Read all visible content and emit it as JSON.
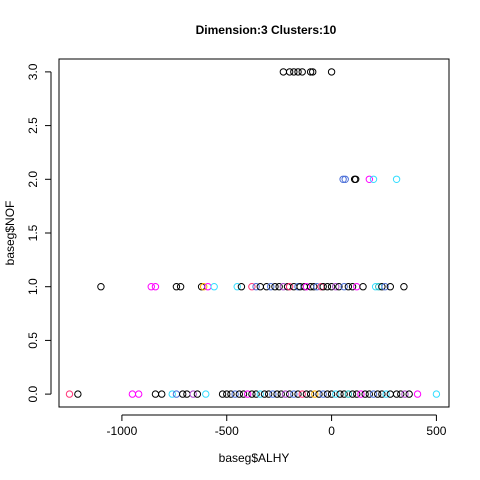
{
  "chart_data": {
    "type": "scatter",
    "title": "Dimension:3 Clusters:10",
    "xlabel": "baseg$ALHY",
    "ylabel": "baseg$NOF",
    "xlim": [
      -1300,
      560
    ],
    "ylim": [
      -0.12,
      3.12
    ],
    "xticks": [
      -1000,
      -500,
      0,
      500
    ],
    "xtick_labels": [
      "-1000",
      "-500",
      "0",
      "500"
    ],
    "yticks": [
      0.0,
      0.5,
      1.0,
      1.5,
      2.0,
      2.5,
      3.0
    ],
    "ytick_labels": [
      "0.0",
      "0.5",
      "1.0",
      "1.5",
      "2.0",
      "2.5",
      "3.0"
    ],
    "grid": false,
    "legend": "none",
    "marker": "open-circle",
    "colors": {
      "black": "#000000",
      "magenta": "#ff00ff",
      "cyan": "#33ddff",
      "blue": "#4b6fd8",
      "orange": "#ffb000",
      "pink": "#ff3377",
      "purple": "#aa44cc",
      "teal": "#22bbbb"
    },
    "points": [
      {
        "x": -230,
        "y": 3,
        "c": "black"
      },
      {
        "x": -200,
        "y": 3,
        "c": "black"
      },
      {
        "x": -180,
        "y": 3,
        "c": "black"
      },
      {
        "x": -160,
        "y": 3,
        "c": "black"
      },
      {
        "x": -140,
        "y": 3,
        "c": "black"
      },
      {
        "x": -100,
        "y": 3,
        "c": "black"
      },
      {
        "x": -90,
        "y": 3,
        "c": "black"
      },
      {
        "x": 0,
        "y": 3,
        "c": "black"
      },
      {
        "x": 55,
        "y": 2,
        "c": "blue"
      },
      {
        "x": 65,
        "y": 2,
        "c": "blue"
      },
      {
        "x": 110,
        "y": 2,
        "c": "black"
      },
      {
        "x": 115,
        "y": 2,
        "c": "black"
      },
      {
        "x": 180,
        "y": 2,
        "c": "magenta"
      },
      {
        "x": 200,
        "y": 2,
        "c": "cyan"
      },
      {
        "x": 310,
        "y": 2,
        "c": "cyan"
      },
      {
        "x": -1100,
        "y": 1,
        "c": "black"
      },
      {
        "x": -860,
        "y": 1,
        "c": "magenta"
      },
      {
        "x": -840,
        "y": 1,
        "c": "magenta"
      },
      {
        "x": -740,
        "y": 1,
        "c": "black"
      },
      {
        "x": -720,
        "y": 1,
        "c": "black"
      },
      {
        "x": -620,
        "y": 1,
        "c": "black"
      },
      {
        "x": -610,
        "y": 1,
        "c": "orange"
      },
      {
        "x": -590,
        "y": 1,
        "c": "magenta"
      },
      {
        "x": -560,
        "y": 1,
        "c": "cyan"
      },
      {
        "x": -450,
        "y": 1,
        "c": "cyan"
      },
      {
        "x": -430,
        "y": 1,
        "c": "black"
      },
      {
        "x": -380,
        "y": 1,
        "c": "pink"
      },
      {
        "x": -360,
        "y": 1,
        "c": "blue"
      },
      {
        "x": -340,
        "y": 1,
        "c": "black"
      },
      {
        "x": -310,
        "y": 1,
        "c": "black"
      },
      {
        "x": -290,
        "y": 1,
        "c": "blue"
      },
      {
        "x": -270,
        "y": 1,
        "c": "black"
      },
      {
        "x": -250,
        "y": 1,
        "c": "black"
      },
      {
        "x": -230,
        "y": 1,
        "c": "purple"
      },
      {
        "x": -210,
        "y": 1,
        "c": "black"
      },
      {
        "x": -200,
        "y": 1,
        "c": "pink"
      },
      {
        "x": -180,
        "y": 1,
        "c": "black"
      },
      {
        "x": -160,
        "y": 1,
        "c": "blue"
      },
      {
        "x": -150,
        "y": 1,
        "c": "black"
      },
      {
        "x": -130,
        "y": 1,
        "c": "black"
      },
      {
        "x": -120,
        "y": 1,
        "c": "magenta"
      },
      {
        "x": -100,
        "y": 1,
        "c": "black"
      },
      {
        "x": -85,
        "y": 1,
        "c": "black"
      },
      {
        "x": -70,
        "y": 1,
        "c": "blue"
      },
      {
        "x": -50,
        "y": 1,
        "c": "pink"
      },
      {
        "x": -40,
        "y": 1,
        "c": "black"
      },
      {
        "x": -20,
        "y": 1,
        "c": "black"
      },
      {
        "x": 0,
        "y": 1,
        "c": "black"
      },
      {
        "x": 20,
        "y": 1,
        "c": "purple"
      },
      {
        "x": 35,
        "y": 1,
        "c": "black"
      },
      {
        "x": 60,
        "y": 1,
        "c": "blue"
      },
      {
        "x": 80,
        "y": 1,
        "c": "black"
      },
      {
        "x": 100,
        "y": 1,
        "c": "black"
      },
      {
        "x": 120,
        "y": 1,
        "c": "magenta"
      },
      {
        "x": 150,
        "y": 1,
        "c": "black"
      },
      {
        "x": 210,
        "y": 1,
        "c": "cyan"
      },
      {
        "x": 225,
        "y": 1,
        "c": "teal"
      },
      {
        "x": 240,
        "y": 1,
        "c": "black"
      },
      {
        "x": 255,
        "y": 1,
        "c": "blue"
      },
      {
        "x": 280,
        "y": 1,
        "c": "black"
      },
      {
        "x": 345,
        "y": 1,
        "c": "black"
      },
      {
        "x": -1250,
        "y": 0,
        "c": "pink"
      },
      {
        "x": -1210,
        "y": 0,
        "c": "black"
      },
      {
        "x": -950,
        "y": 0,
        "c": "magenta"
      },
      {
        "x": -920,
        "y": 0,
        "c": "magenta"
      },
      {
        "x": -840,
        "y": 0,
        "c": "black"
      },
      {
        "x": -810,
        "y": 0,
        "c": "black"
      },
      {
        "x": -760,
        "y": 0,
        "c": "cyan"
      },
      {
        "x": -740,
        "y": 0,
        "c": "blue"
      },
      {
        "x": -710,
        "y": 0,
        "c": "black"
      },
      {
        "x": -690,
        "y": 0,
        "c": "black"
      },
      {
        "x": -660,
        "y": 0,
        "c": "purple"
      },
      {
        "x": -640,
        "y": 0,
        "c": "black"
      },
      {
        "x": -600,
        "y": 0,
        "c": "cyan"
      },
      {
        "x": -520,
        "y": 0,
        "c": "black"
      },
      {
        "x": -500,
        "y": 0,
        "c": "black"
      },
      {
        "x": -480,
        "y": 0,
        "c": "black"
      },
      {
        "x": -460,
        "y": 0,
        "c": "blue"
      },
      {
        "x": -440,
        "y": 0,
        "c": "black"
      },
      {
        "x": -420,
        "y": 0,
        "c": "black"
      },
      {
        "x": -400,
        "y": 0,
        "c": "magenta"
      },
      {
        "x": -380,
        "y": 0,
        "c": "black"
      },
      {
        "x": -360,
        "y": 0,
        "c": "black"
      },
      {
        "x": -340,
        "y": 0,
        "c": "cyan"
      },
      {
        "x": -320,
        "y": 0,
        "c": "black"
      },
      {
        "x": -300,
        "y": 0,
        "c": "black"
      },
      {
        "x": -280,
        "y": 0,
        "c": "blue"
      },
      {
        "x": -260,
        "y": 0,
        "c": "black"
      },
      {
        "x": -240,
        "y": 0,
        "c": "black"
      },
      {
        "x": -220,
        "y": 0,
        "c": "purple"
      },
      {
        "x": -200,
        "y": 0,
        "c": "black"
      },
      {
        "x": -180,
        "y": 0,
        "c": "blue"
      },
      {
        "x": -160,
        "y": 0,
        "c": "black"
      },
      {
        "x": -140,
        "y": 0,
        "c": "pink"
      },
      {
        "x": -120,
        "y": 0,
        "c": "black"
      },
      {
        "x": -100,
        "y": 0,
        "c": "black"
      },
      {
        "x": -80,
        "y": 0,
        "c": "orange"
      },
      {
        "x": -60,
        "y": 0,
        "c": "black"
      },
      {
        "x": -40,
        "y": 0,
        "c": "blue"
      },
      {
        "x": -20,
        "y": 0,
        "c": "black"
      },
      {
        "x": 0,
        "y": 0,
        "c": "black"
      },
      {
        "x": 20,
        "y": 0,
        "c": "cyan"
      },
      {
        "x": 40,
        "y": 0,
        "c": "black"
      },
      {
        "x": 60,
        "y": 0,
        "c": "black"
      },
      {
        "x": 80,
        "y": 0,
        "c": "teal"
      },
      {
        "x": 100,
        "y": 0,
        "c": "black"
      },
      {
        "x": 120,
        "y": 0,
        "c": "black"
      },
      {
        "x": 140,
        "y": 0,
        "c": "magenta"
      },
      {
        "x": 160,
        "y": 0,
        "c": "black"
      },
      {
        "x": 180,
        "y": 0,
        "c": "black"
      },
      {
        "x": 200,
        "y": 0,
        "c": "blue"
      },
      {
        "x": 220,
        "y": 0,
        "c": "black"
      },
      {
        "x": 240,
        "y": 0,
        "c": "black"
      },
      {
        "x": 260,
        "y": 0,
        "c": "cyan"
      },
      {
        "x": 280,
        "y": 0,
        "c": "black"
      },
      {
        "x": 310,
        "y": 0,
        "c": "black"
      },
      {
        "x": 330,
        "y": 0,
        "c": "black"
      },
      {
        "x": 350,
        "y": 0,
        "c": "purple"
      },
      {
        "x": 370,
        "y": 0,
        "c": "black"
      },
      {
        "x": 410,
        "y": 0,
        "c": "magenta"
      },
      {
        "x": 500,
        "y": 0,
        "c": "cyan"
      }
    ]
  }
}
